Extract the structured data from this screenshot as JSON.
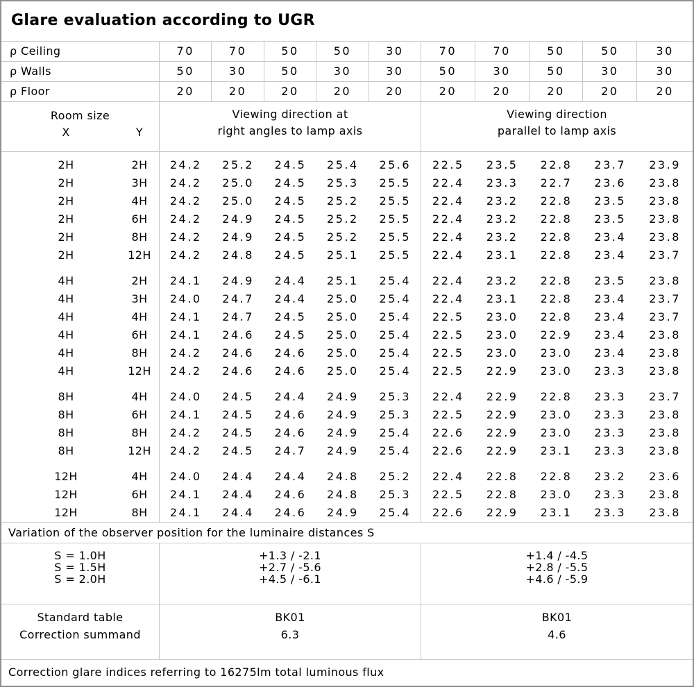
{
  "title": "Glare evaluation according to UGR",
  "colors": {
    "background": "#ffffff",
    "text": "#000000",
    "grid_line": "#c8c8c8",
    "outer_border": "#909090"
  },
  "reflectance": {
    "rows": [
      {
        "label": "ρ Ceiling",
        "values": [
          "70",
          "70",
          "50",
          "50",
          "30",
          "70",
          "70",
          "50",
          "50",
          "30"
        ]
      },
      {
        "label": "ρ Walls",
        "values": [
          "50",
          "30",
          "50",
          "30",
          "30",
          "50",
          "30",
          "50",
          "30",
          "30"
        ]
      },
      {
        "label": "ρ Floor",
        "values": [
          "20",
          "20",
          "20",
          "20",
          "20",
          "20",
          "20",
          "20",
          "20",
          "20"
        ]
      }
    ]
  },
  "room_size": {
    "title": "Room size",
    "x_label": "X",
    "y_label": "Y"
  },
  "viewing_headers": {
    "right_angles": [
      "Viewing direction at",
      "right angles to lamp axis"
    ],
    "parallel": [
      "Viewing direction",
      "parallel to lamp axis"
    ]
  },
  "ugr_table": {
    "groups": [
      {
        "rows": [
          {
            "x": "2H",
            "y": "2H",
            "right_angles": [
              "24.2",
              "25.2",
              "24.5",
              "25.4",
              "25.6"
            ],
            "parallel": [
              "22.5",
              "23.5",
              "22.8",
              "23.7",
              "23.9"
            ]
          },
          {
            "x": "2H",
            "y": "3H",
            "right_angles": [
              "24.2",
              "25.0",
              "24.5",
              "25.3",
              "25.5"
            ],
            "parallel": [
              "22.4",
              "23.3",
              "22.7",
              "23.6",
              "23.8"
            ]
          },
          {
            "x": "2H",
            "y": "4H",
            "right_angles": [
              "24.2",
              "25.0",
              "24.5",
              "25.2",
              "25.5"
            ],
            "parallel": [
              "22.4",
              "23.2",
              "22.8",
              "23.5",
              "23.8"
            ]
          },
          {
            "x": "2H",
            "y": "6H",
            "right_angles": [
              "24.2",
              "24.9",
              "24.5",
              "25.2",
              "25.5"
            ],
            "parallel": [
              "22.4",
              "23.2",
              "22.8",
              "23.5",
              "23.8"
            ]
          },
          {
            "x": "2H",
            "y": "8H",
            "right_angles": [
              "24.2",
              "24.9",
              "24.5",
              "25.2",
              "25.5"
            ],
            "parallel": [
              "22.4",
              "23.2",
              "22.8",
              "23.4",
              "23.8"
            ]
          },
          {
            "x": "2H",
            "y": "12H",
            "right_angles": [
              "24.2",
              "24.8",
              "24.5",
              "25.1",
              "25.5"
            ],
            "parallel": [
              "22.4",
              "23.1",
              "22.8",
              "23.4",
              "23.7"
            ]
          }
        ]
      },
      {
        "rows": [
          {
            "x": "4H",
            "y": "2H",
            "right_angles": [
              "24.1",
              "24.9",
              "24.4",
              "25.1",
              "25.4"
            ],
            "parallel": [
              "22.4",
              "23.2",
              "22.8",
              "23.5",
              "23.8"
            ]
          },
          {
            "x": "4H",
            "y": "3H",
            "right_angles": [
              "24.0",
              "24.7",
              "24.4",
              "25.0",
              "25.4"
            ],
            "parallel": [
              "22.4",
              "23.1",
              "22.8",
              "23.4",
              "23.7"
            ]
          },
          {
            "x": "4H",
            "y": "4H",
            "right_angles": [
              "24.1",
              "24.7",
              "24.5",
              "25.0",
              "25.4"
            ],
            "parallel": [
              "22.5",
              "23.0",
              "22.8",
              "23.4",
              "23.7"
            ]
          },
          {
            "x": "4H",
            "y": "6H",
            "right_angles": [
              "24.1",
              "24.6",
              "24.5",
              "25.0",
              "25.4"
            ],
            "parallel": [
              "22.5",
              "23.0",
              "22.9",
              "23.4",
              "23.8"
            ]
          },
          {
            "x": "4H",
            "y": "8H",
            "right_angles": [
              "24.2",
              "24.6",
              "24.6",
              "25.0",
              "25.4"
            ],
            "parallel": [
              "22.5",
              "23.0",
              "23.0",
              "23.4",
              "23.8"
            ]
          },
          {
            "x": "4H",
            "y": "12H",
            "right_angles": [
              "24.2",
              "24.6",
              "24.6",
              "25.0",
              "25.4"
            ],
            "parallel": [
              "22.5",
              "22.9",
              "23.0",
              "23.3",
              "23.8"
            ]
          }
        ]
      },
      {
        "rows": [
          {
            "x": "8H",
            "y": "4H",
            "right_angles": [
              "24.0",
              "24.5",
              "24.4",
              "24.9",
              "25.3"
            ],
            "parallel": [
              "22.4",
              "22.9",
              "22.8",
              "23.3",
              "23.7"
            ]
          },
          {
            "x": "8H",
            "y": "6H",
            "right_angles": [
              "24.1",
              "24.5",
              "24.6",
              "24.9",
              "25.3"
            ],
            "parallel": [
              "22.5",
              "22.9",
              "23.0",
              "23.3",
              "23.8"
            ]
          },
          {
            "x": "8H",
            "y": "8H",
            "right_angles": [
              "24.2",
              "24.5",
              "24.6",
              "24.9",
              "25.4"
            ],
            "parallel": [
              "22.6",
              "22.9",
              "23.0",
              "23.3",
              "23.8"
            ]
          },
          {
            "x": "8H",
            "y": "12H",
            "right_angles": [
              "24.2",
              "24.5",
              "24.7",
              "24.9",
              "25.4"
            ],
            "parallel": [
              "22.6",
              "22.9",
              "23.1",
              "23.3",
              "23.8"
            ]
          }
        ]
      },
      {
        "rows": [
          {
            "x": "12H",
            "y": "4H",
            "right_angles": [
              "24.0",
              "24.4",
              "24.4",
              "24.8",
              "25.2"
            ],
            "parallel": [
              "22.4",
              "22.8",
              "22.8",
              "23.2",
              "23.6"
            ]
          },
          {
            "x": "12H",
            "y": "6H",
            "right_angles": [
              "24.1",
              "24.4",
              "24.6",
              "24.8",
              "25.3"
            ],
            "parallel": [
              "22.5",
              "22.8",
              "23.0",
              "23.3",
              "23.8"
            ]
          },
          {
            "x": "12H",
            "y": "8H",
            "right_angles": [
              "24.1",
              "24.4",
              "24.6",
              "24.9",
              "25.4"
            ],
            "parallel": [
              "22.6",
              "22.9",
              "23.1",
              "23.3",
              "23.8"
            ]
          }
        ]
      }
    ]
  },
  "variation_note": "Variation of the observer position for the luminaire distances S",
  "observer_variation": {
    "s_labels": [
      "S = 1.0H",
      "S = 1.5H",
      "S = 2.0H"
    ],
    "right_angles": [
      "+1.3 / -2.1",
      "+2.7 / -5.6",
      "+4.5 / -6.1"
    ],
    "parallel": [
      "+1.4 / -4.5",
      "+2.8 / -5.5",
      "+4.6 / -5.9"
    ]
  },
  "correction": {
    "row_labels": [
      "Standard table",
      "Correction summand"
    ],
    "right_angles": [
      "BK01",
      "6.3"
    ],
    "parallel": [
      "BK01",
      "4.6"
    ]
  },
  "footer_note": "Correction glare indices referring to 16275lm total luminous flux"
}
